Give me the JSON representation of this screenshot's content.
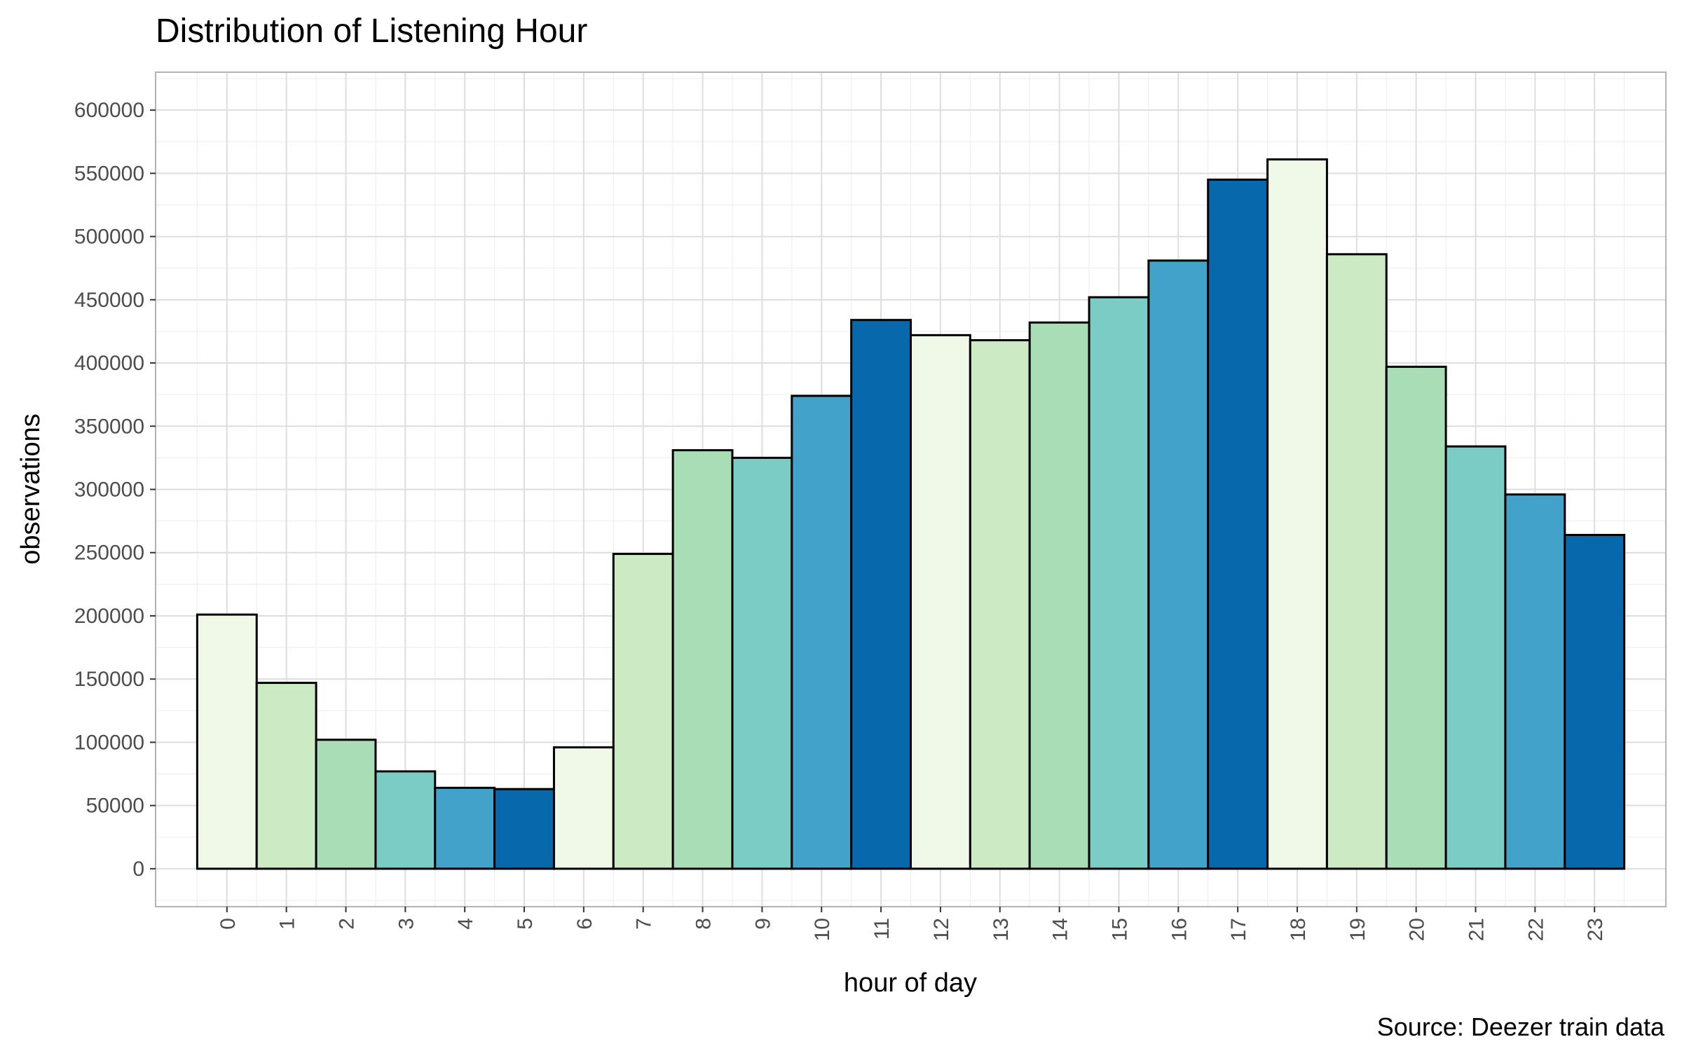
{
  "chart_data": {
    "type": "bar",
    "title": "Distribution of Listening Hour",
    "xlabel": "hour of day",
    "ylabel": "observations",
    "caption": "Source: Deezer train data",
    "categories": [
      "0",
      "1",
      "2",
      "3",
      "4",
      "5",
      "6",
      "7",
      "8",
      "9",
      "10",
      "11",
      "12",
      "13",
      "14",
      "15",
      "16",
      "17",
      "18",
      "19",
      "20",
      "21",
      "22",
      "23"
    ],
    "values": [
      201000,
      147000,
      102000,
      77000,
      64000,
      63000,
      96000,
      249000,
      331000,
      325000,
      374000,
      434000,
      422000,
      418000,
      432000,
      452000,
      481000,
      545000,
      561000,
      486000,
      397000,
      334000,
      296000,
      264000
    ],
    "colors": [
      "#f0f9e8",
      "#ccebc5",
      "#a8ddb5",
      "#7bccc4",
      "#43a2ca",
      "#0868ac",
      "#f0f9e8",
      "#ccebc5",
      "#a8ddb5",
      "#7bccc4",
      "#43a2ca",
      "#0868ac",
      "#f0f9e8",
      "#ccebc5",
      "#a8ddb5",
      "#7bccc4",
      "#43a2ca",
      "#0868ac",
      "#f0f9e8",
      "#ccebc5",
      "#a8ddb5",
      "#7bccc4",
      "#43a2ca",
      "#0868ac"
    ],
    "y_ticks": [
      "0",
      "50000",
      "100000",
      "150000",
      "200000",
      "250000",
      "300000",
      "350000",
      "400000",
      "450000",
      "500000",
      "550000",
      "600000"
    ],
    "ylim": [
      -30000,
      630000
    ],
    "xlim": [
      -1.2,
      24.2
    ],
    "grid": true,
    "legend": "none",
    "theme_colors": {
      "panel_border": "#b3b3b3",
      "grid_major": "#dedede",
      "grid_minor": "#efefef",
      "bar_outline": "#000000"
    }
  }
}
